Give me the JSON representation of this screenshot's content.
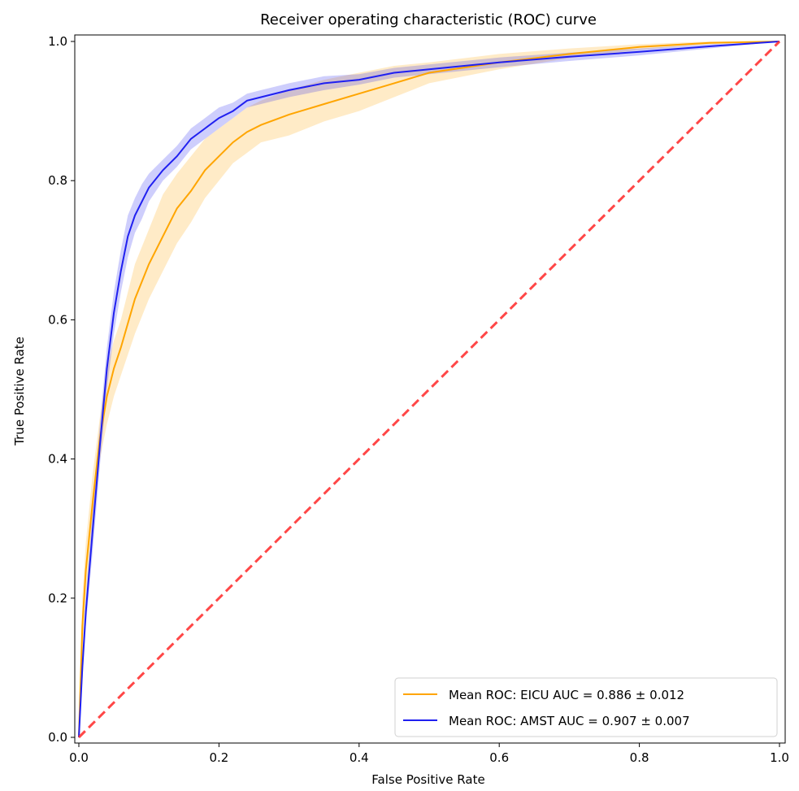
{
  "chart_data": {
    "type": "line",
    "title": "Receiver operating characteristic (ROC) curve",
    "xlabel": "False Positive Rate",
    "ylabel": "True Positive Rate",
    "xlim": [
      0,
      1
    ],
    "ylim": [
      0,
      1
    ],
    "xticks": [
      "0.0",
      "0.2",
      "0.4",
      "0.6",
      "0.8",
      "1.0"
    ],
    "yticks": [
      "0.0",
      "0.2",
      "0.4",
      "0.6",
      "0.8",
      "1.0"
    ],
    "grid": false,
    "legend_position": "lower-right",
    "series": [
      {
        "name": "Mean ROC: EICU AUC = 0.886 ± 0.012",
        "color": "#ffa500",
        "x": [
          0,
          0.005,
          0.01,
          0.02,
          0.03,
          0.04,
          0.05,
          0.06,
          0.08,
          0.1,
          0.12,
          0.14,
          0.16,
          0.18,
          0.2,
          0.22,
          0.24,
          0.26,
          0.3,
          0.35,
          0.4,
          0.45,
          0.5,
          0.6,
          0.7,
          0.8,
          0.9,
          1.0
        ],
        "y": [
          0,
          0.16,
          0.24,
          0.34,
          0.43,
          0.49,
          0.53,
          0.56,
          0.63,
          0.68,
          0.72,
          0.76,
          0.785,
          0.815,
          0.835,
          0.855,
          0.87,
          0.88,
          0.895,
          0.91,
          0.925,
          0.94,
          0.955,
          0.97,
          0.982,
          0.992,
          0.998,
          1.0
        ],
        "lower": [
          0,
          0.12,
          0.2,
          0.3,
          0.4,
          0.45,
          0.49,
          0.52,
          0.58,
          0.63,
          0.67,
          0.71,
          0.74,
          0.775,
          0.8,
          0.825,
          0.84,
          0.855,
          0.865,
          0.885,
          0.9,
          0.92,
          0.94,
          0.96,
          0.976,
          0.988,
          0.996,
          1.0
        ],
        "upper": [
          0,
          0.2,
          0.28,
          0.38,
          0.46,
          0.53,
          0.57,
          0.6,
          0.68,
          0.73,
          0.78,
          0.81,
          0.835,
          0.86,
          0.875,
          0.89,
          0.905,
          0.915,
          0.93,
          0.945,
          0.955,
          0.965,
          0.97,
          0.982,
          0.99,
          0.996,
          1.0,
          1.0
        ]
      },
      {
        "name": "Mean ROC: AMST AUC = 0.907 ± 0.007",
        "color": "#2020f0",
        "x": [
          0,
          0.005,
          0.01,
          0.02,
          0.03,
          0.04,
          0.05,
          0.06,
          0.07,
          0.08,
          0.09,
          0.1,
          0.12,
          0.14,
          0.16,
          0.18,
          0.2,
          0.22,
          0.24,
          0.26,
          0.3,
          0.35,
          0.4,
          0.45,
          0.5,
          0.6,
          0.7,
          0.8,
          0.9,
          1.0
        ],
        "y": [
          0,
          0.1,
          0.18,
          0.3,
          0.42,
          0.53,
          0.61,
          0.67,
          0.72,
          0.75,
          0.77,
          0.79,
          0.815,
          0.835,
          0.86,
          0.875,
          0.89,
          0.9,
          0.915,
          0.92,
          0.93,
          0.94,
          0.945,
          0.955,
          0.96,
          0.97,
          0.978,
          0.985,
          0.993,
          1.0
        ],
        "lower": [
          0,
          0.08,
          0.16,
          0.27,
          0.39,
          0.5,
          0.58,
          0.64,
          0.69,
          0.725,
          0.745,
          0.77,
          0.8,
          0.82,
          0.845,
          0.86,
          0.875,
          0.89,
          0.905,
          0.91,
          0.92,
          0.93,
          0.938,
          0.948,
          0.953,
          0.963,
          0.972,
          0.98,
          0.99,
          1.0
        ],
        "upper": [
          0,
          0.12,
          0.2,
          0.33,
          0.45,
          0.56,
          0.64,
          0.7,
          0.75,
          0.775,
          0.795,
          0.81,
          0.83,
          0.85,
          0.875,
          0.89,
          0.905,
          0.912,
          0.925,
          0.93,
          0.94,
          0.95,
          0.953,
          0.962,
          0.967,
          0.977,
          0.984,
          0.99,
          0.996,
          1.0
        ]
      },
      {
        "name": "",
        "color": "#ff3333",
        "dashed": true,
        "x": [
          0,
          1
        ],
        "y": [
          0,
          1
        ]
      }
    ]
  }
}
